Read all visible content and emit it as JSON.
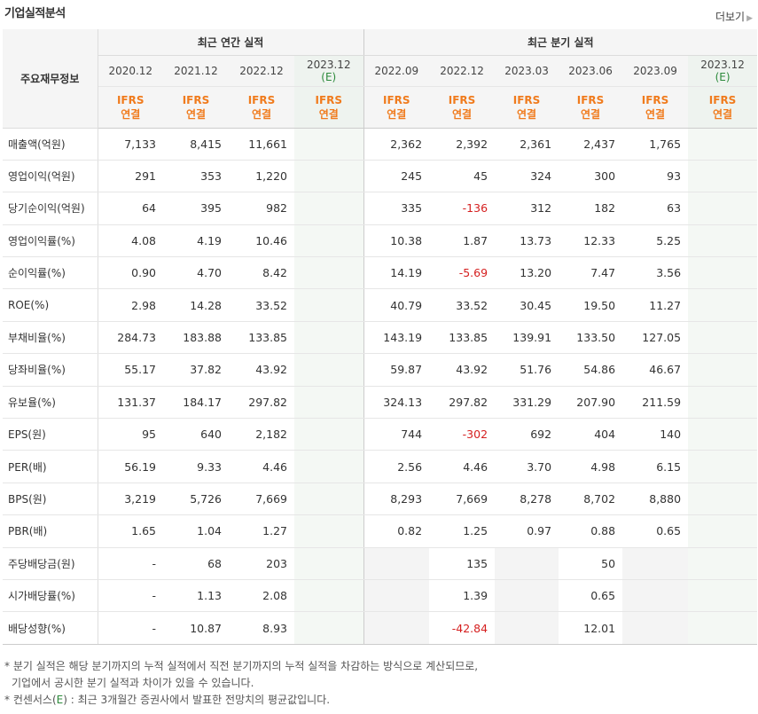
{
  "title": "기업실적분석",
  "more_label": "더보기",
  "header": {
    "row_label": "주요재무정보",
    "group_annual": "최근 연간 실적",
    "group_quarter": "최근 분기 실적",
    "annual_periods": [
      "2020.12",
      "2021.12",
      "2022.12",
      "2023.12"
    ],
    "annual_estimate_mark": "(E)",
    "quarter_periods": [
      "2022.09",
      "2022.12",
      "2023.03",
      "2023.06",
      "2023.09",
      "2023.12"
    ],
    "quarter_estimate_mark": "(E)",
    "basis_line1": "IFRS",
    "basis_line2": "연결"
  },
  "rows": [
    {
      "label": "매출액(억원)",
      "values": [
        "7,133",
        "8,415",
        "11,661",
        "",
        "2,362",
        "2,392",
        "2,361",
        "2,437",
        "1,765",
        ""
      ]
    },
    {
      "label": "영업이익(억원)",
      "values": [
        "291",
        "353",
        "1,220",
        "",
        "245",
        "45",
        "324",
        "300",
        "93",
        ""
      ]
    },
    {
      "label": "당기순이익(억원)",
      "values": [
        "64",
        "395",
        "982",
        "",
        "335",
        "-136",
        "312",
        "182",
        "63",
        ""
      ]
    },
    {
      "label": "영업이익률(%)",
      "values": [
        "4.08",
        "4.19",
        "10.46",
        "",
        "10.38",
        "1.87",
        "13.73",
        "12.33",
        "5.25",
        ""
      ]
    },
    {
      "label": "순이익률(%)",
      "values": [
        "0.90",
        "4.70",
        "8.42",
        "",
        "14.19",
        "-5.69",
        "13.20",
        "7.47",
        "3.56",
        ""
      ]
    },
    {
      "label": "ROE(%)",
      "values": [
        "2.98",
        "14.28",
        "33.52",
        "",
        "40.79",
        "33.52",
        "30.45",
        "19.50",
        "11.27",
        ""
      ]
    },
    {
      "label": "부채비율(%)",
      "values": [
        "284.73",
        "183.88",
        "133.85",
        "",
        "143.19",
        "133.85",
        "139.91",
        "133.50",
        "127.05",
        ""
      ]
    },
    {
      "label": "당좌비율(%)",
      "values": [
        "55.17",
        "37.82",
        "43.92",
        "",
        "59.87",
        "43.92",
        "51.76",
        "54.86",
        "46.67",
        ""
      ]
    },
    {
      "label": "유보율(%)",
      "values": [
        "131.37",
        "184.17",
        "297.82",
        "",
        "324.13",
        "297.82",
        "331.29",
        "207.90",
        "211.59",
        ""
      ]
    },
    {
      "label": "EPS(원)",
      "values": [
        "95",
        "640",
        "2,182",
        "",
        "744",
        "-302",
        "692",
        "404",
        "140",
        ""
      ]
    },
    {
      "label": "PER(배)",
      "values": [
        "56.19",
        "9.33",
        "4.46",
        "",
        "2.56",
        "4.46",
        "3.70",
        "4.98",
        "6.15",
        ""
      ]
    },
    {
      "label": "BPS(원)",
      "values": [
        "3,219",
        "5,726",
        "7,669",
        "",
        "8,293",
        "7,669",
        "8,278",
        "8,702",
        "8,880",
        ""
      ]
    },
    {
      "label": "PBR(배)",
      "values": [
        "1.65",
        "1.04",
        "1.27",
        "",
        "0.82",
        "1.25",
        "0.97",
        "0.88",
        "0.65",
        ""
      ]
    },
    {
      "label": "주당배당금(원)",
      "values": [
        "-",
        "68",
        "203",
        "",
        "",
        "135",
        "",
        "50",
        "",
        ""
      ]
    },
    {
      "label": "시가배당률(%)",
      "values": [
        "-",
        "1.13",
        "2.08",
        "",
        "",
        "1.39",
        "",
        "0.65",
        "",
        ""
      ]
    },
    {
      "label": "배당성향(%)",
      "values": [
        "-",
        "10.87",
        "8.93",
        "",
        "",
        "-42.84",
        "",
        "12.01",
        "",
        ""
      ]
    }
  ],
  "notes": {
    "line1": "* 분기 실적은 해당 분기까지의 누적 실적에서 직전 분기까지의 누적 실적을 차감하는 방식으로 계산되므로,",
    "line2": "기업에서 공시한 분기 실적과 차이가 있을 수 있습니다.",
    "line3_prefix": "* 컨센서스(",
    "line3_mark": "E",
    "line3_suffix": ") : 최근 3개월간 증권사에서 발표한 전망치의 평균값입니다."
  },
  "colors": {
    "accent_orange": "#f07b1d",
    "estimate_green": "#2c8a3b",
    "negative_red": "#d51f1f"
  }
}
